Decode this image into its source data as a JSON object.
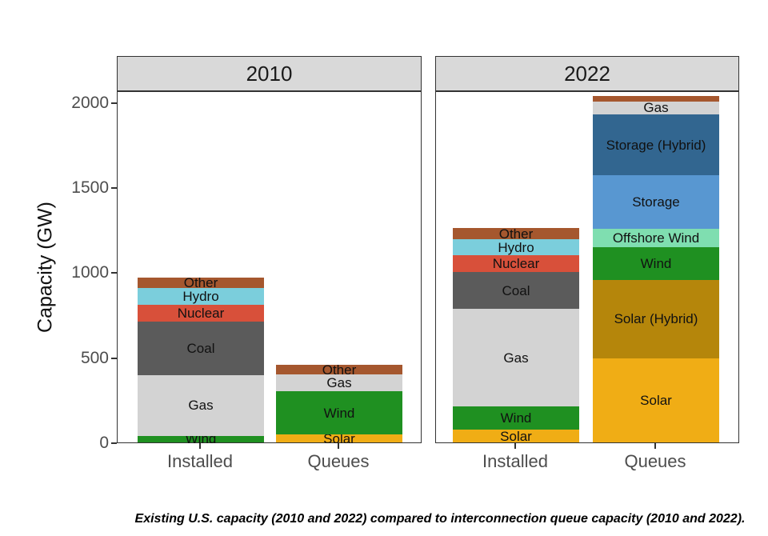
{
  "caption": "Existing U.S. capacity (2010 and 2022) compared to interconnection queue capacity (2010 and 2022).",
  "palette": {
    "solar": "#F0AD15",
    "solar_hybrid": "#B5860B",
    "wind": "#1F9021",
    "offshore_wind": "#7FDEB0",
    "storage": "#5897D1",
    "storage_hybrid": "#326690",
    "gas": "#D3D3D3",
    "coal": "#5B5B5B",
    "nuclear": "#D8503A",
    "hydro": "#7BCEDC",
    "other": "#A5572E"
  },
  "chart_data": {
    "type": "bar",
    "stacked": true,
    "title": "",
    "xlabel": "",
    "ylabel": "Capacity (GW)",
    "units": "GW",
    "ylim": [
      0,
      2070
    ],
    "yticks": [
      0,
      500,
      1000,
      1500,
      2000
    ],
    "grid": "off",
    "legend": "none",
    "categories": [
      "Installed",
      "Queues"
    ],
    "facets": [
      {
        "label": "2010",
        "bars": [
          {
            "category": "Installed",
            "total": 970,
            "segments": [
              {
                "name": "Wind",
                "value": 40,
                "color": "wind",
                "label_shown": true
              },
              {
                "name": "Gas",
                "value": 355,
                "color": "gas",
                "label_shown": true
              },
              {
                "name": "Coal",
                "value": 315,
                "color": "coal",
                "label_shown": true
              },
              {
                "name": "Nuclear",
                "value": 100,
                "color": "nuclear",
                "label_shown": true
              },
              {
                "name": "Hydro",
                "value": 100,
                "color": "hydro",
                "label_shown": true
              },
              {
                "name": "Other",
                "value": 60,
                "color": "other",
                "label_shown": true
              }
            ]
          },
          {
            "category": "Queues",
            "total": 455,
            "segments": [
              {
                "name": "Solar",
                "value": 45,
                "color": "solar",
                "label_shown": true
              },
              {
                "name": "Wind",
                "value": 255,
                "color": "wind",
                "label_shown": true
              },
              {
                "name": "Gas",
                "value": 100,
                "color": "gas",
                "label_shown": true
              },
              {
                "name": "Other",
                "value": 55,
                "color": "other",
                "label_shown": true
              }
            ]
          }
        ]
      },
      {
        "label": "2022",
        "bars": [
          {
            "category": "Installed",
            "total": 1260,
            "segments": [
              {
                "name": "Solar",
                "value": 75,
                "color": "solar",
                "label_shown": true
              },
              {
                "name": "Wind",
                "value": 135,
                "color": "wind",
                "label_shown": true
              },
              {
                "name": "Gas",
                "value": 575,
                "color": "gas",
                "label_shown": true
              },
              {
                "name": "Coal",
                "value": 215,
                "color": "coal",
                "label_shown": true
              },
              {
                "name": "Nuclear",
                "value": 100,
                "color": "nuclear",
                "label_shown": true
              },
              {
                "name": "Hydro",
                "value": 95,
                "color": "hydro",
                "label_shown": true
              },
              {
                "name": "Other",
                "value": 65,
                "color": "other",
                "label_shown": true
              }
            ]
          },
          {
            "category": "Queues",
            "total": 2035,
            "segments": [
              {
                "name": "Solar",
                "value": 495,
                "color": "solar",
                "label_shown": true
              },
              {
                "name": "Solar (Hybrid)",
                "value": 460,
                "color": "solar_hybrid",
                "label_shown": true
              },
              {
                "name": "Wind",
                "value": 195,
                "color": "wind",
                "label_shown": true
              },
              {
                "name": "Offshore Wind",
                "value": 105,
                "color": "offshore_wind",
                "label_shown": true
              },
              {
                "name": "Storage",
                "value": 315,
                "color": "storage",
                "label_shown": true
              },
              {
                "name": "Storage (Hybrid)",
                "value": 360,
                "color": "storage_hybrid",
                "label_shown": true
              },
              {
                "name": "Gas",
                "value": 75,
                "color": "gas",
                "label_shown": true
              },
              {
                "name": "Other",
                "value": 30,
                "color": "other",
                "label_shown": false
              }
            ]
          }
        ]
      }
    ]
  }
}
